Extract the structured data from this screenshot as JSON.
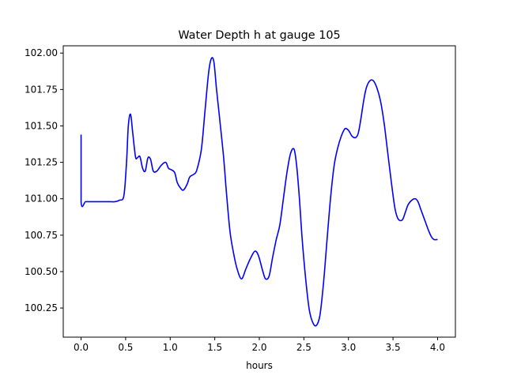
{
  "colors": {
    "line": "#0000ff",
    "axes": "#000000",
    "background": "#ffffff"
  },
  "chart_data": {
    "type": "line",
    "title": "Water Depth h at gauge 105",
    "xlabel": "hours",
    "ylabel": "",
    "xlim": [
      -0.2,
      4.2
    ],
    "ylim": [
      100.05,
      102.05
    ],
    "xticks": [
      0.0,
      0.5,
      1.0,
      1.5,
      2.0,
      2.5,
      3.0,
      3.5,
      4.0
    ],
    "xtick_labels": [
      "0.0",
      "0.5",
      "1.0",
      "1.5",
      "2.0",
      "2.5",
      "3.0",
      "3.5",
      "4.0"
    ],
    "yticks": [
      100.25,
      100.5,
      100.75,
      101.0,
      101.25,
      101.5,
      101.75,
      102.0
    ],
    "ytick_labels": [
      "100.25",
      "100.50",
      "100.75",
      "101.00",
      "101.25",
      "101.50",
      "101.75",
      "102.00"
    ],
    "grid": false,
    "series": [
      {
        "color": "#0000ff",
        "x": [
          0.0,
          0.0,
          0.05,
          0.1,
          0.2,
          0.3,
          0.38,
          0.43,
          0.48,
          0.51,
          0.53,
          0.555,
          0.58,
          0.61,
          0.63,
          0.66,
          0.69,
          0.72,
          0.75,
          0.78,
          0.81,
          0.85,
          0.9,
          0.95,
          0.98,
          1.01,
          1.05,
          1.08,
          1.12,
          1.15,
          1.19,
          1.22,
          1.27,
          1.3,
          1.35,
          1.39,
          1.43,
          1.46,
          1.49,
          1.52,
          1.56,
          1.6,
          1.63,
          1.67,
          1.71,
          1.75,
          1.8,
          1.85,
          1.9,
          1.95,
          1.99,
          2.04,
          2.07,
          2.11,
          2.15,
          2.19,
          2.23,
          2.27,
          2.31,
          2.35,
          2.39,
          2.42,
          2.45,
          2.48,
          2.52,
          2.56,
          2.6,
          2.64,
          2.68,
          2.72,
          2.76,
          2.8,
          2.84,
          2.88,
          2.92,
          2.96,
          3.0,
          3.04,
          3.08,
          3.11,
          3.14,
          3.17,
          3.2,
          3.24,
          3.28,
          3.32,
          3.36,
          3.4,
          3.44,
          3.48,
          3.52,
          3.55,
          3.58,
          3.61,
          3.64,
          3.67,
          3.71,
          3.75,
          3.78,
          3.81,
          3.84,
          3.87,
          3.9,
          3.93,
          3.96,
          4.0
        ],
        "y": [
          101.44,
          100.98,
          100.98,
          100.98,
          100.98,
          100.98,
          100.98,
          100.99,
          101.02,
          101.25,
          101.5,
          101.58,
          101.45,
          101.29,
          101.28,
          101.29,
          101.21,
          101.19,
          101.28,
          101.27,
          101.19,
          101.19,
          101.23,
          101.25,
          101.21,
          101.2,
          101.18,
          101.11,
          101.07,
          101.06,
          101.1,
          101.15,
          101.17,
          101.2,
          101.34,
          101.6,
          101.86,
          101.96,
          101.94,
          101.75,
          101.52,
          101.28,
          101.05,
          100.78,
          100.63,
          100.52,
          100.45,
          100.52,
          100.59,
          100.64,
          100.61,
          100.5,
          100.45,
          100.47,
          100.6,
          100.72,
          100.82,
          101.0,
          101.18,
          101.31,
          101.34,
          101.22,
          101.0,
          100.73,
          100.45,
          100.24,
          100.15,
          100.13,
          100.2,
          100.42,
          100.72,
          101.01,
          101.23,
          101.35,
          101.43,
          101.48,
          101.47,
          101.43,
          101.42,
          101.45,
          101.55,
          101.67,
          101.76,
          101.81,
          101.81,
          101.76,
          101.67,
          101.52,
          101.32,
          101.12,
          100.94,
          100.87,
          100.85,
          100.86,
          100.91,
          100.96,
          100.99,
          101.0,
          100.98,
          100.93,
          100.88,
          100.83,
          100.78,
          100.74,
          100.72,
          100.72
        ]
      }
    ]
  }
}
